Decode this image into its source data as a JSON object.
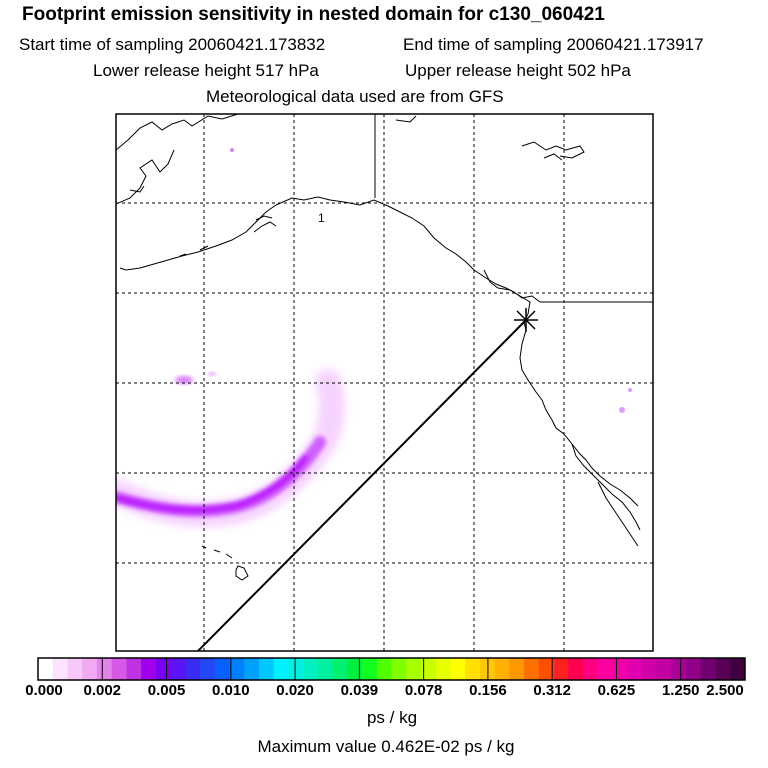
{
  "header": {
    "title": "Footprint emission sensitivity in nested domain for c130_060421",
    "start_label": "Start time of sampling 20060421.173832",
    "end_label": "End time of sampling 20060421.173917",
    "lower_label": "Lower release height  517 hPa",
    "upper_label": "Upper release height  502 hPa",
    "met_label": "Meteorological data used are from GFS"
  },
  "map": {
    "marker_label": "1",
    "colors": {
      "coast": "#000000",
      "grid": "#000000",
      "plume_core": "#b000ff",
      "plume_edge": "#f0b0ff"
    }
  },
  "colorbar": {
    "unit": "ps / kg",
    "tick_labels": [
      "0.000",
      "0.002",
      "0.005",
      "0.010",
      "0.020",
      "0.039",
      "0.078",
      "0.156",
      "0.312",
      "0.625",
      "1.250",
      "2.500"
    ],
    "colors": [
      "#ffffff",
      "#fde3fd",
      "#f8c8f8",
      "#f0aaf2",
      "#e483ec",
      "#d45ae6",
      "#c033e3",
      "#a000ee",
      "#7a00f3",
      "#5b15f5",
      "#3a2cf2",
      "#2448f5",
      "#0a60ff",
      "#0080ff",
      "#00a0ff",
      "#00c8ff",
      "#00f0ff",
      "#00f0e0",
      "#00f0c0",
      "#00f0a0",
      "#00f070",
      "#00f040",
      "#10ff20",
      "#50ff00",
      "#80ff00",
      "#a8ff00",
      "#c8ff00",
      "#e8ff00",
      "#ffff00",
      "#ffe000",
      "#ffc800",
      "#ffb000",
      "#ff9800",
      "#ff7000",
      "#ff5000",
      "#ff2020",
      "#ff0050",
      "#ff0080",
      "#ff00a0",
      "#f000a8",
      "#e000b0",
      "#d000a8",
      "#c000a0",
      "#a80098",
      "#900088",
      "#700070",
      "#580058",
      "#400040"
    ]
  },
  "footer": {
    "max_label": "Maximum value  0.462E-02 ps / kg"
  }
}
